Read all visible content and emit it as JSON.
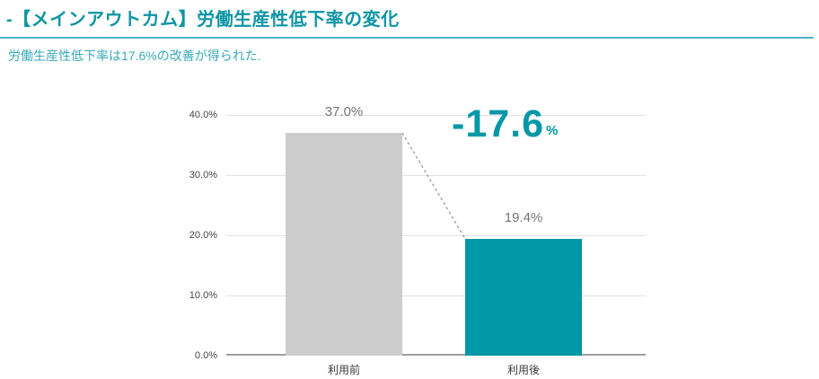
{
  "header": {
    "title": "-【メインアウトカム】労働生産性低下率の変化",
    "subtitle": "労働生産性低下率は17.6%の改善が得られた.",
    "accent_color": "#0e95a4",
    "divider_color": "#4db3c4"
  },
  "annotation": {
    "value": "-17.6",
    "unit": "%",
    "color": "#0097a7"
  },
  "chart_data": {
    "type": "bar",
    "title": "",
    "xlabel": "",
    "ylabel": "",
    "categories": [
      "利用前",
      "利用後"
    ],
    "values": [
      37.0,
      19.4
    ],
    "value_labels": [
      "37.0%",
      "19.4%"
    ],
    "bar_colors": [
      "#cccccc",
      "#0097a7"
    ],
    "ylim": [
      0,
      40
    ],
    "y_ticks": [
      0,
      10,
      20,
      30,
      40
    ],
    "y_tick_labels": [
      "0.0%",
      "10.0%",
      "20.0%",
      "30.0%",
      "40.0%"
    ],
    "grid": true,
    "legend": "none",
    "connector": {
      "style": "dashed",
      "from": "top-right-of-first-bar",
      "to": "top-left-of-second-bar",
      "color": "#999999"
    }
  }
}
